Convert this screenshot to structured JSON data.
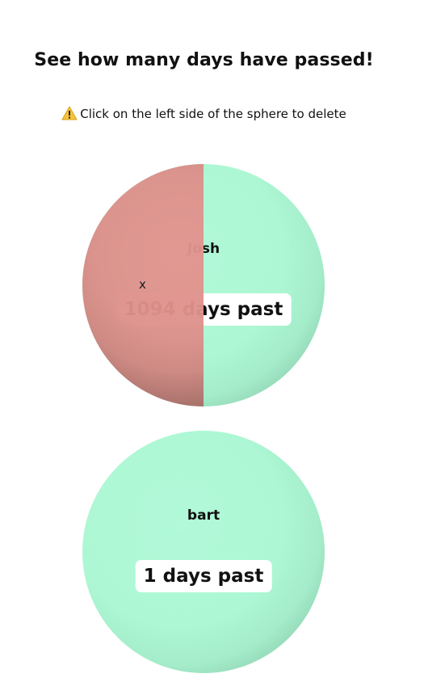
{
  "header": {
    "title": "See how many days have passed!"
  },
  "hint": {
    "icon": "warning-icon",
    "text": "Click on the left side of the sphere to delete"
  },
  "colors": {
    "sphere": "#adf7d4",
    "delete_half": "#de918b",
    "pill_background": "#ffffff"
  },
  "entries": [
    {
      "name": "Josh",
      "days_label": "1094 days past",
      "delete_label": "x"
    },
    {
      "name": "bart",
      "days_label": "1 days past"
    }
  ]
}
